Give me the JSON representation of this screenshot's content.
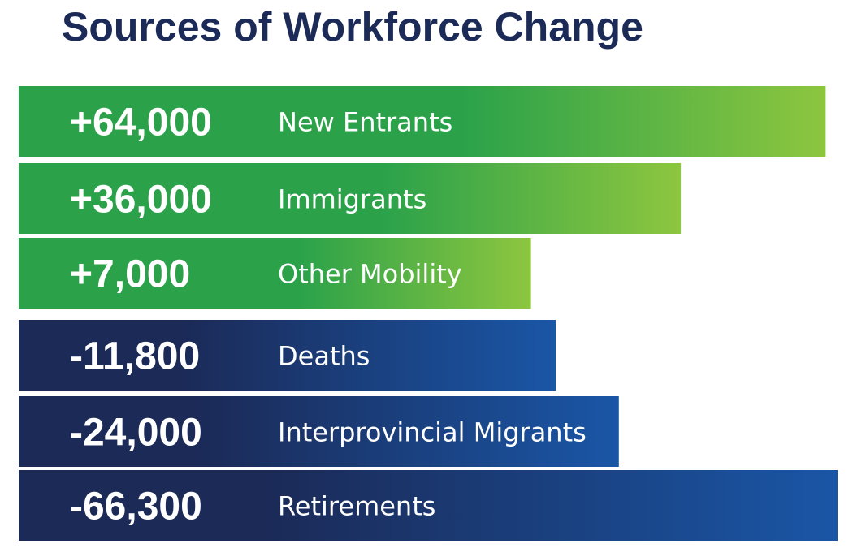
{
  "chart_data": {
    "type": "bar",
    "orientation": "horizontal",
    "title": "Sources of Workforce Change",
    "categories": [
      "New Entrants",
      "Immigrants",
      "Other Mobility",
      "Deaths",
      "Interprovincial Migrants",
      "Retirements"
    ],
    "values": [
      64000,
      36000,
      7000,
      -11800,
      -24000,
      -66300
    ],
    "value_labels": [
      "+64,000",
      "+36,000",
      "+7,000",
      "-11,800",
      "-24,000",
      "-66,300"
    ],
    "grid": false,
    "legend": "none",
    "colors": {
      "positive": [
        "#2ba24a",
        "#8dc63f"
      ],
      "negative": [
        "#1b2a57",
        "#1a56a6"
      ]
    }
  }
}
